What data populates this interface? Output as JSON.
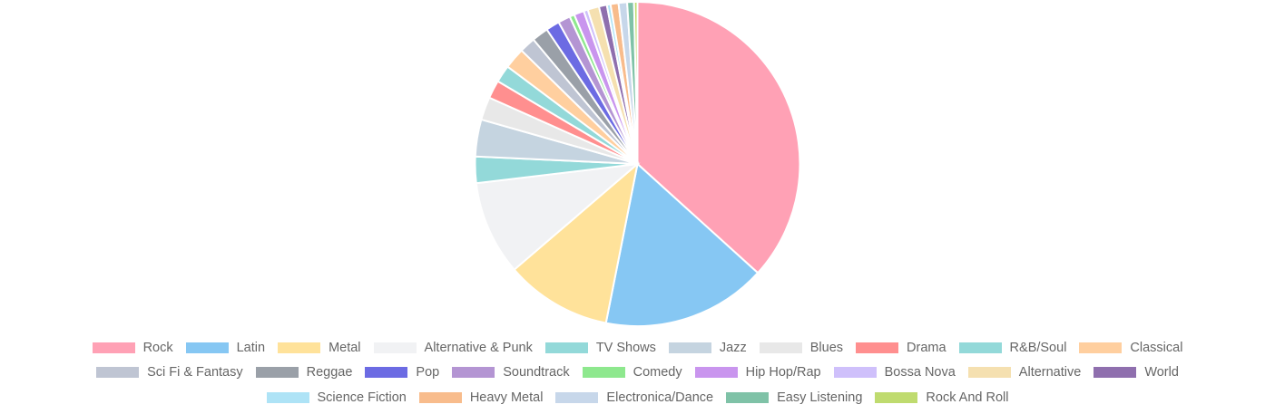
{
  "chart_data": {
    "type": "pie",
    "title": "",
    "legend_position": "bottom",
    "slices": [
      {
        "label": "Rock",
        "value": 1297,
        "color": "#ffa1b5"
      },
      {
        "label": "Latin",
        "value": 579,
        "color": "#86c7f3"
      },
      {
        "label": "Metal",
        "value": 374,
        "color": "#ffe29a"
      },
      {
        "label": "Alternative & Punk",
        "value": 332,
        "color": "#f1f2f4"
      },
      {
        "label": "TV Shows",
        "value": 93,
        "color": "#93d9d9"
      },
      {
        "label": "Jazz",
        "value": 130,
        "color": "#c5d4e0"
      },
      {
        "label": "Blues",
        "value": 81,
        "color": "#e8e8e8"
      },
      {
        "label": "Drama",
        "value": 64,
        "color": "#ff8f8f"
      },
      {
        "label": "R&B/Soul",
        "value": 61,
        "color": "#93d9d9"
      },
      {
        "label": "Classical",
        "value": 74,
        "color": "#ffcf9f"
      },
      {
        "label": "Sci Fi & Fantasy",
        "value": 56,
        "color": "#bfc5d3"
      },
      {
        "label": "Reggae",
        "value": 58,
        "color": "#9aa0a8"
      },
      {
        "label": "Pop",
        "value": 48,
        "color": "#6c6be3"
      },
      {
        "label": "Soundtrack",
        "value": 43,
        "color": "#b495d3"
      },
      {
        "label": "Comedy",
        "value": 17,
        "color": "#8ee88e"
      },
      {
        "label": "Hip Hop/Rap",
        "value": 35,
        "color": "#c995ee"
      },
      {
        "label": "Bossa Nova",
        "value": 15,
        "color": "#cfc0fb"
      },
      {
        "label": "Alternative",
        "value": 40,
        "color": "#f5e0b0"
      },
      {
        "label": "World",
        "value": 28,
        "color": "#8f6fae"
      },
      {
        "label": "Science Fiction",
        "value": 13,
        "color": "#aee3f6"
      },
      {
        "label": "Heavy Metal",
        "value": 28,
        "color": "#f8bc8c"
      },
      {
        "label": "Electronica/Dance",
        "value": 30,
        "color": "#c7d7ea"
      },
      {
        "label": "Easy Listening",
        "value": 24,
        "color": "#7fc2a7"
      },
      {
        "label": "Rock And Roll",
        "value": 12,
        "color": "#bfdb6f"
      }
    ],
    "legend_rows": [
      [
        "Rock",
        "Latin",
        "Metal",
        "Alternative & Punk",
        "TV Shows",
        "Jazz",
        "Blues",
        "Drama",
        "R&B/Soul",
        "Classical"
      ],
      [
        "Sci Fi & Fantasy",
        "Reggae",
        "Pop",
        "Soundtrack",
        "Comedy",
        "Hip Hop/Rap",
        "Bossa Nova",
        "Alternative",
        "World"
      ],
      [
        "Science Fiction",
        "Heavy Metal",
        "Electronica/Dance",
        "Easy Listening",
        "Rock And Roll"
      ]
    ],
    "legend_colors": {
      "Rock": "#ffa1b5",
      "Latin": "#86c7f3",
      "Metal": "#ffe29a",
      "Alternative & Punk": "#f1f2f4",
      "TV Shows": "#93d9d9",
      "Jazz": "#c5d4e0",
      "Blues": "#e8e8e8",
      "Drama": "#ff8f8f",
      "R&B/Soul": "#93d9d9",
      "Classical": "#ffcf9f",
      "Sci Fi & Fantasy": "#bfc5d3",
      "Reggae": "#9aa0a8",
      "Pop": "#6c6be3",
      "Soundtrack": "#b495d3",
      "Comedy": "#8ee88e",
      "Hip Hop/Rap": "#c995ee",
      "Bossa Nova": "#cfc0fb",
      "Alternative": "#f5e0b0",
      "World": "#8f6fae",
      "Science Fiction": "#aee3f6",
      "Heavy Metal": "#f8bc8c",
      "Electronica/Dance": "#c7d7ea",
      "Easy Listening": "#7fc2a7",
      "Rock And Roll": "#bfdb6f"
    }
  }
}
